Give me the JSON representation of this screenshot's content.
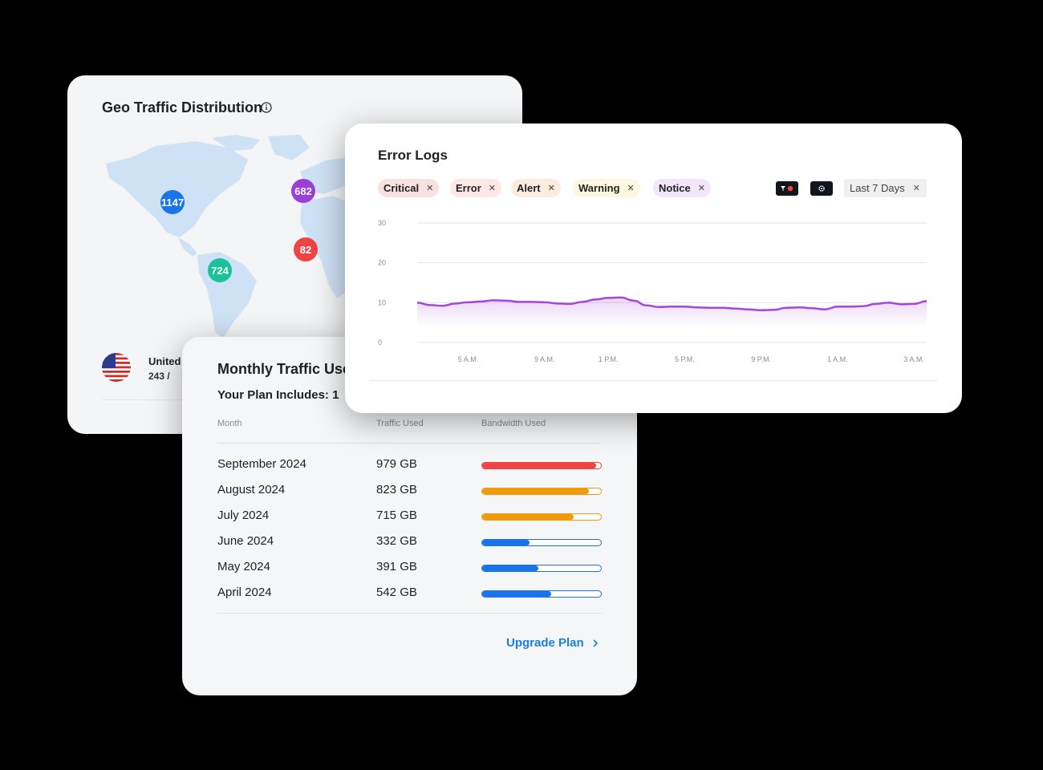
{
  "geo": {
    "title": "Geo Traffic Distribution",
    "info_icon": "info-circle-icon",
    "clusters": [
      {
        "label": "1147",
        "color": "#1a73e8"
      },
      {
        "label": "682",
        "color": "#9b3fd9"
      },
      {
        "label": "82",
        "color": "#ee4444"
      },
      {
        "label": "724",
        "color": "#19c29a"
      }
    ],
    "country": {
      "flag": "us-flag-icon",
      "name": "United",
      "stats": "243 /"
    }
  },
  "traffic": {
    "title": "Monthly Traffic Used",
    "plan_label": "Your Plan Includes: 1",
    "columns": {
      "month": "Month",
      "traffic": "Traffic Used",
      "bandwidth": "Bandwidth Used"
    },
    "rows": [
      {
        "month": "September 2024",
        "used": "979 GB",
        "fraction": 0.96,
        "color": "#ef4444"
      },
      {
        "month": "August 2024",
        "used": "823 GB",
        "fraction": 0.9,
        "color": "#f29a0e"
      },
      {
        "month": "July 2024",
        "used": "715 GB",
        "fraction": 0.77,
        "color": "#f29a0e"
      },
      {
        "month": "June 2024",
        "used": "332 GB",
        "fraction": 0.4,
        "color": "#1a73e8"
      },
      {
        "month": "May 2024",
        "used": "391 GB",
        "fraction": 0.47,
        "color": "#1a73e8"
      },
      {
        "month": "April 2024",
        "used": "542 GB",
        "fraction": 0.58,
        "color": "#1a73e8"
      }
    ],
    "upgrade_label": "Upgrade Plan"
  },
  "error_logs": {
    "title": "Error Logs",
    "filters": [
      {
        "label": "Critical",
        "bg": "#f9e1e1"
      },
      {
        "label": "Error",
        "bg": "#fde8e6"
      },
      {
        "label": "Alert",
        "bg": "#fdebe0"
      },
      {
        "label": "Warning",
        "bg": "#fdf6e0"
      },
      {
        "label": "Notice",
        "bg": "#f3e6fb"
      }
    ],
    "filter_button_icon": "filter-icon",
    "settings_button_icon": "settings-icon",
    "range_label": "Last 7 Days"
  },
  "chart_data": {
    "type": "area",
    "title": "",
    "xlabel": "",
    "ylabel": "",
    "ylim": [
      0,
      30
    ],
    "yticks": [
      "30",
      "20",
      "10",
      "0"
    ],
    "xticks": [
      "5 A.M.",
      "9 A.M.",
      "1 P.M.",
      "5 P.M.",
      "9 P.M.",
      "1 A.M.",
      "3 A.M."
    ],
    "grid": true,
    "line_color": "#a447db",
    "x": [
      "",
      "",
      "",
      "",
      "5 A.M.",
      "",
      "",
      "",
      "",
      "",
      "9 A.M.",
      "",
      "",
      "",
      "",
      "1 P.M.",
      "",
      "",
      "",
      "",
      "",
      "5 P.M.",
      "",
      "",
      "",
      "",
      "",
      "9 P.M.",
      "",
      "",
      "",
      "",
      "",
      "1 A.M.",
      "",
      "",
      "",
      "",
      "",
      "3 A.M.",
      ""
    ],
    "values": [
      10,
      9.4,
      9.2,
      9.8,
      10.1,
      10.3,
      10.6,
      10.5,
      10.2,
      10.2,
      10.1,
      9.8,
      9.7,
      10.2,
      10.8,
      11.2,
      11.3,
      10.5,
      9.3,
      8.9,
      9.0,
      9.0,
      8.8,
      8.7,
      8.7,
      8.5,
      8.3,
      8.1,
      8.2,
      8.7,
      8.8,
      8.6,
      8.3,
      9.0,
      9.0,
      9.1,
      9.7,
      10.0,
      9.6,
      9.7,
      10.4
    ]
  }
}
